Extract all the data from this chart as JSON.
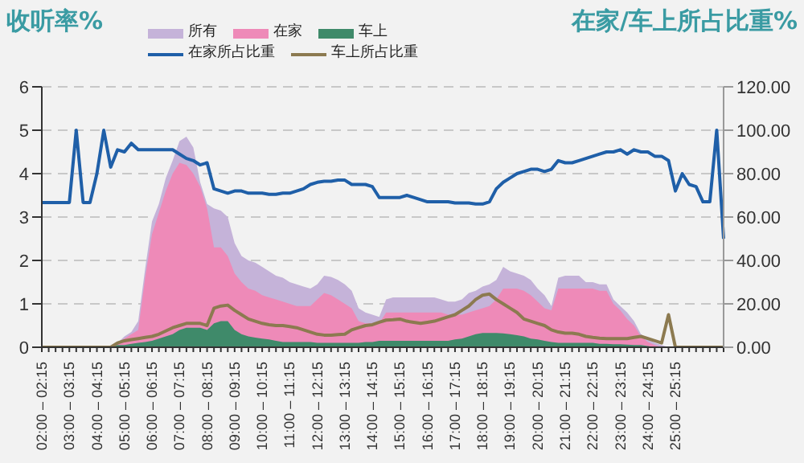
{
  "chart_data": {
    "type": "area",
    "ylabel": "收听率%",
    "y2label": "在家/车上所占比重%",
    "categories": [
      "02:00 – 02:15",
      null,
      null,
      null,
      "03:00 – 03:15",
      null,
      null,
      null,
      "04:00 – 04:15",
      null,
      null,
      null,
      "05:00 – 05:15",
      null,
      null,
      null,
      "06:00 – 06:15",
      null,
      null,
      null,
      "07:00 – 07:15",
      null,
      null,
      null,
      "08:00 – 08:15",
      null,
      null,
      null,
      "09:00 – 09:15",
      null,
      null,
      null,
      "10:00 – 10:15",
      null,
      null,
      null,
      "11:00 – 11:15",
      null,
      null,
      null,
      "12:00 – 12:15",
      null,
      null,
      null,
      "13:00 – 13:15",
      null,
      null,
      null,
      "14:00 – 14:15",
      null,
      null,
      null,
      "15:00 – 15:15",
      null,
      null,
      null,
      "16:00 – 16:15",
      null,
      null,
      null,
      "17:00 – 17:15",
      null,
      null,
      null,
      "18:00 – 18:15",
      null,
      null,
      null,
      "19:00 – 19:15",
      null,
      null,
      null,
      "20:00 – 20:15",
      null,
      null,
      null,
      "21:00 – 21:15",
      null,
      null,
      null,
      "22:00 – 22:15",
      null,
      null,
      null,
      "23:00 – 23:15",
      null,
      null,
      null,
      "24:00 – 24:15",
      null,
      null,
      null,
      "25:00 – 25:15",
      null,
      null,
      null,
      null,
      null,
      null,
      null
    ],
    "series": [
      {
        "name": "所有",
        "type": "area",
        "color": "#c5b3d9",
        "values": [
          0,
          0,
          0,
          0,
          0,
          0,
          0,
          0,
          0,
          0,
          0,
          0.1,
          0.25,
          0.35,
          0.6,
          1.8,
          2.9,
          3.3,
          3.9,
          4.3,
          4.75,
          4.85,
          4.6,
          3.8,
          3.3,
          3.2,
          3.15,
          3.0,
          2.4,
          2.1,
          2.0,
          1.95,
          1.85,
          1.75,
          1.65,
          1.6,
          1.5,
          1.45,
          1.4,
          1.35,
          1.45,
          1.65,
          1.62,
          1.55,
          1.45,
          1.3,
          0.9,
          0.8,
          0.75,
          0.7,
          1.1,
          1.15,
          1.15,
          1.15,
          1.15,
          1.15,
          1.15,
          1.15,
          1.1,
          1.05,
          1.05,
          1.1,
          1.25,
          1.3,
          1.4,
          1.45,
          1.55,
          1.85,
          1.75,
          1.7,
          1.65,
          1.55,
          1.35,
          1.2,
          0.95,
          1.6,
          1.65,
          1.65,
          1.65,
          1.5,
          1.5,
          1.45,
          1.45,
          1.1,
          0.95,
          0.8,
          0.6,
          0.3,
          0.2,
          0.1,
          0.05,
          0,
          0,
          0,
          0,
          0,
          0,
          0,
          0,
          0
        ]
      },
      {
        "name": "在家",
        "type": "area",
        "color": "#ee8ab8",
        "values": [
          0,
          0,
          0,
          0,
          0,
          0,
          0,
          0,
          0,
          0,
          0,
          0.1,
          0.2,
          0.3,
          0.4,
          1.6,
          2.6,
          3.1,
          3.6,
          4.0,
          4.25,
          4.2,
          4.0,
          3.7,
          3.2,
          2.3,
          2.3,
          2.1,
          1.7,
          1.5,
          1.35,
          1.3,
          1.2,
          1.15,
          1.1,
          1.05,
          1.0,
          0.95,
          0.95,
          0.95,
          1.1,
          1.25,
          1.2,
          1.1,
          1.0,
          0.9,
          0.6,
          0.55,
          0.55,
          0.55,
          0.8,
          0.8,
          0.8,
          0.8,
          0.8,
          0.8,
          0.8,
          0.8,
          0.8,
          0.75,
          0.75,
          0.75,
          0.8,
          0.85,
          0.9,
          0.95,
          1.1,
          1.35,
          1.35,
          1.35,
          1.3,
          1.2,
          1.05,
          0.9,
          0.85,
          1.35,
          1.35,
          1.35,
          1.35,
          1.35,
          1.35,
          1.3,
          1.3,
          1.0,
          0.85,
          0.65,
          0.5,
          0.25,
          0.12,
          0.05,
          0,
          0,
          0,
          0,
          0,
          0,
          0,
          0,
          0,
          0
        ]
      },
      {
        "name": "车上",
        "type": "area",
        "color": "#3f8a6a",
        "values": [
          0,
          0,
          0,
          0,
          0,
          0,
          0,
          0,
          0,
          0,
          0,
          0.05,
          0.05,
          0.08,
          0.1,
          0.12,
          0.15,
          0.2,
          0.25,
          0.3,
          0.4,
          0.45,
          0.45,
          0.45,
          0.4,
          0.55,
          0.6,
          0.6,
          0.4,
          0.3,
          0.25,
          0.22,
          0.2,
          0.18,
          0.15,
          0.12,
          0.12,
          0.12,
          0.12,
          0.12,
          0.1,
          0.1,
          0.1,
          0.1,
          0.1,
          0.1,
          0.1,
          0.12,
          0.12,
          0.15,
          0.15,
          0.15,
          0.15,
          0.15,
          0.15,
          0.15,
          0.15,
          0.15,
          0.15,
          0.15,
          0.18,
          0.2,
          0.25,
          0.3,
          0.33,
          0.33,
          0.33,
          0.32,
          0.3,
          0.28,
          0.25,
          0.2,
          0.18,
          0.15,
          0.12,
          0.1,
          0.1,
          0.1,
          0.1,
          0.1,
          0.1,
          0.08,
          0.08,
          0.07,
          0.07,
          0.06,
          0.05,
          0.05,
          0.03,
          0,
          0,
          0,
          0,
          0,
          0,
          0,
          0,
          0,
          0,
          0
        ]
      },
      {
        "name": "在家所占比重",
        "type": "line",
        "axis": "y2",
        "color": "#1f5fa8",
        "values": [
          66.7,
          66.7,
          66.7,
          66.7,
          66.7,
          100,
          66.7,
          66.7,
          80,
          100,
          83,
          91,
          90,
          94,
          91,
          91,
          91,
          91,
          91,
          91,
          89,
          87,
          86,
          84,
          85,
          73,
          72,
          71,
          72,
          72,
          71,
          71,
          71,
          70.5,
          70.5,
          71,
          71,
          72,
          73,
          75,
          76,
          76.5,
          76.5,
          77,
          77,
          75,
          75,
          75,
          74,
          69,
          69,
          69,
          69,
          70,
          69,
          68,
          67,
          67,
          67,
          67,
          66.5,
          66.5,
          66.5,
          66,
          66,
          67,
          73,
          76,
          78,
          80,
          81,
          82,
          82,
          81,
          82,
          86,
          85,
          85,
          86,
          87,
          88,
          89,
          90,
          90,
          91,
          89,
          91,
          90,
          90,
          88,
          88,
          86,
          72,
          80,
          75,
          74,
          67,
          67,
          100,
          50
        ]
      },
      {
        "name": "车上所占比重",
        "type": "line",
        "axis": "y2",
        "color": "#8c7a50",
        "values": [
          0,
          0,
          0,
          0,
          0,
          0,
          0,
          0,
          0,
          0,
          0,
          2,
          3,
          3.5,
          4,
          4.5,
          5,
          6,
          7.5,
          9,
          10,
          11,
          11,
          11,
          10,
          18,
          19,
          19.4,
          17,
          15,
          13,
          12,
          11,
          10.4,
          10,
          10,
          9.5,
          9,
          8,
          7,
          6,
          5.6,
          5.6,
          5.8,
          6,
          8,
          9,
          10,
          10.4,
          11.5,
          12.5,
          12.7,
          13,
          12,
          11.5,
          11,
          11.5,
          12,
          13,
          14,
          15,
          17,
          19,
          22,
          24,
          24.5,
          22,
          20,
          18,
          16,
          13,
          12,
          11,
          10,
          8,
          7,
          6.5,
          6.5,
          6,
          5,
          4.5,
          4.2,
          4,
          4,
          4,
          4,
          4.5,
          5,
          4,
          3,
          2,
          15,
          0,
          0,
          0,
          0,
          0,
          0,
          0,
          0
        ]
      }
    ],
    "ylim": [
      0,
      6
    ],
    "yticks": [
      0,
      1,
      2,
      3,
      4,
      5,
      6
    ],
    "y2lim": [
      0,
      120
    ],
    "y2ticks": [
      {
        "value": 0,
        "label": "0.00"
      },
      {
        "value": 20,
        "label": "20.00"
      },
      {
        "value": 40,
        "label": "40.00"
      },
      {
        "value": 60,
        "label": "60.00"
      },
      {
        "value": 80,
        "label": "80.00"
      },
      {
        "value": 100,
        "label": "100.00"
      },
      {
        "value": 120,
        "label": "120.00"
      }
    ],
    "grid": "y",
    "legend": "top",
    "marker": "none",
    "line_style": "solid"
  }
}
